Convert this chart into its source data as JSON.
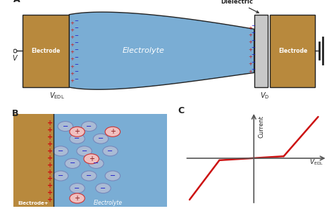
{
  "bg_color": "#ffffff",
  "electrode_color": "#b8893d",
  "electrolyte_color": "#7aadd4",
  "dielectric_color": "#c8c8c8",
  "line_color": "#222222",
  "red_line_color": "#cc1111",
  "panel_A_label": "A",
  "panel_B_label": "B",
  "panel_C_label": "C",
  "electrode_label": "Electrode",
  "electrolyte_label": "Electrolyte",
  "dielectric_label": "Dielectric",
  "V_EDL_label": "$V_{\\mathrm{EDL}}$",
  "V_D_label": "$V_{\\mathrm{D}}$",
  "V_label": "$V$",
  "current_label": "Current",
  "neg_ion_face": "#aabbd5",
  "neg_ion_edge": "#7788bb",
  "pos_ion_face": "#f0c0c0",
  "pos_ion_edge": "#cc3333",
  "plus_text_color": "#cc1111",
  "minus_text_color": "#1111cc"
}
